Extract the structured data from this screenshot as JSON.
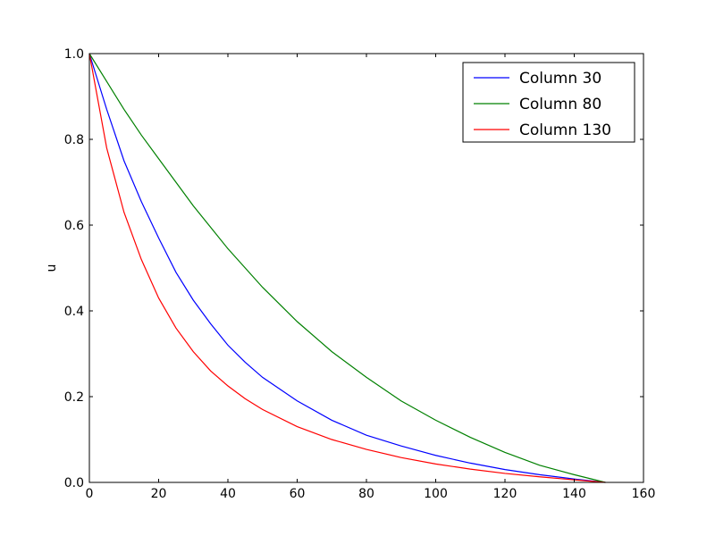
{
  "chart_data": {
    "type": "line",
    "xlabel": "",
    "ylabel": "u",
    "xlim": [
      0,
      160
    ],
    "ylim": [
      0,
      1.0
    ],
    "xticks": [
      0,
      20,
      40,
      60,
      80,
      100,
      120,
      140,
      160
    ],
    "yticks": [
      0.0,
      0.2,
      0.4,
      0.6,
      0.8,
      1.0
    ],
    "xtick_labels": [
      "0",
      "20",
      "40",
      "60",
      "80",
      "100",
      "120",
      "140",
      "160"
    ],
    "ytick_labels": [
      "0.0",
      "0.2",
      "0.4",
      "0.6",
      "0.8",
      "1.0"
    ],
    "grid": false,
    "legend_position": "top-right",
    "series": [
      {
        "name": "Column 30",
        "color": "#0000ff",
        "x": [
          0,
          5,
          10,
          15,
          20,
          25,
          30,
          35,
          40,
          45,
          50,
          60,
          70,
          80,
          90,
          100,
          110,
          120,
          130,
          140,
          149
        ],
        "y": [
          1.0,
          0.87,
          0.75,
          0.655,
          0.57,
          0.49,
          0.425,
          0.37,
          0.32,
          0.28,
          0.245,
          0.19,
          0.145,
          0.11,
          0.085,
          0.063,
          0.045,
          0.03,
          0.018,
          0.008,
          0.0
        ]
      },
      {
        "name": "Column 80",
        "color": "#008000",
        "x": [
          0,
          5,
          10,
          15,
          20,
          25,
          30,
          35,
          40,
          45,
          50,
          60,
          70,
          80,
          90,
          100,
          110,
          120,
          130,
          140,
          149
        ],
        "y": [
          1.0,
          0.935,
          0.87,
          0.81,
          0.755,
          0.7,
          0.645,
          0.595,
          0.545,
          0.5,
          0.455,
          0.375,
          0.305,
          0.245,
          0.19,
          0.145,
          0.105,
          0.07,
          0.04,
          0.018,
          0.0
        ]
      },
      {
        "name": "Column 130",
        "color": "#ff0000",
        "x": [
          0,
          5,
          10,
          15,
          20,
          25,
          30,
          35,
          40,
          45,
          50,
          60,
          70,
          80,
          90,
          100,
          110,
          120,
          130,
          140,
          149
        ],
        "y": [
          1.0,
          0.78,
          0.63,
          0.52,
          0.43,
          0.36,
          0.305,
          0.26,
          0.225,
          0.195,
          0.17,
          0.13,
          0.1,
          0.077,
          0.058,
          0.043,
          0.031,
          0.021,
          0.013,
          0.006,
          0.0
        ]
      }
    ]
  }
}
